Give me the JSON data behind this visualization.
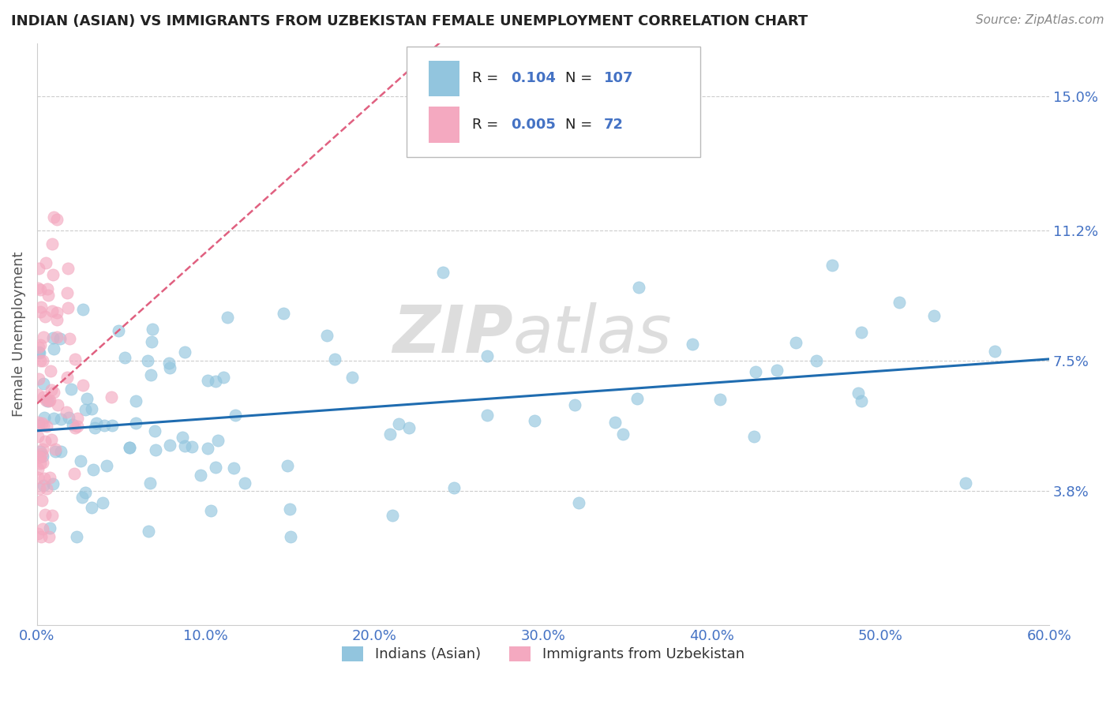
{
  "title": "INDIAN (ASIAN) VS IMMIGRANTS FROM UZBEKISTAN FEMALE UNEMPLOYMENT CORRELATION CHART",
  "source_text": "Source: ZipAtlas.com",
  "ylabel": "Female Unemployment",
  "xlim": [
    0.0,
    0.6
  ],
  "ylim": [
    0.0,
    0.165
  ],
  "ytick_positions": [
    0.038,
    0.075,
    0.112,
    0.15
  ],
  "ytick_labels": [
    "3.8%",
    "7.5%",
    "11.2%",
    "15.0%"
  ],
  "xtick_positions": [
    0.0,
    0.1,
    0.2,
    0.3,
    0.4,
    0.5,
    0.6
  ],
  "xtick_labels": [
    "0.0%",
    "10.0%",
    "20.0%",
    "30.0%",
    "40.0%",
    "50.0%",
    "60.0%"
  ],
  "series1_color": "#92c5de",
  "series2_color": "#f4a9c0",
  "series1_label": "Indians (Asian)",
  "series2_label": "Immigrants from Uzbekistan",
  "R1": "0.104",
  "N1": "107",
  "R2": "0.005",
  "N2": "72",
  "trend1_color": "#1f6cb0",
  "trend2_color": "#e06080",
  "watermark_zip": "ZIP",
  "watermark_atlas": "atlas",
  "background_color": "#ffffff",
  "grid_color": "#cccccc",
  "title_color": "#222222",
  "axis_label_color": "#555555",
  "tick_label_color": "#4472c4",
  "legend_text_color": "#222222",
  "legend_val_color": "#4472c4"
}
